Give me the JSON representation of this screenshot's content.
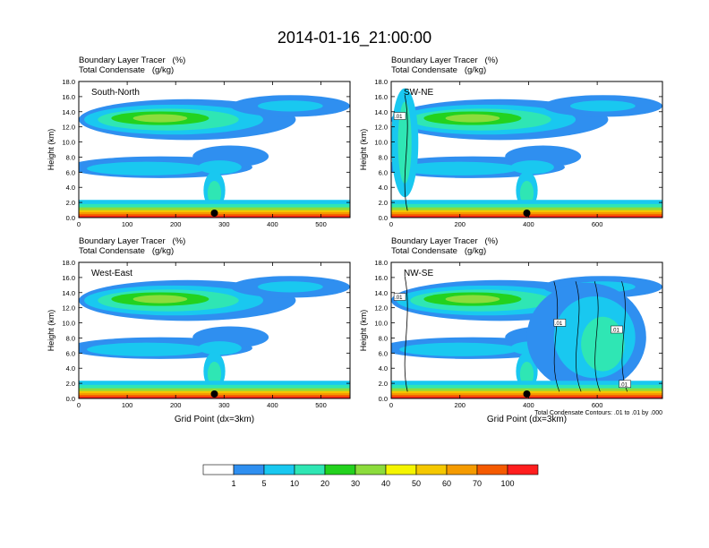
{
  "title": "2014-01-16_21:00:00",
  "field_label_1": "Boundary Layer Tracer   (%)",
  "field_label_2": "Total Condensate   (g/kg)",
  "colors": [
    "#ffffff",
    "#2f8ff0",
    "#19c8f0",
    "#2fe6b4",
    "#23d21e",
    "#8cdc3c",
    "#f5f500",
    "#f5c800",
    "#f59b00",
    "#f55a00",
    "#ff1e1e"
  ],
  "chart_data": [
    {
      "type": "heatmap",
      "label": "South-North",
      "x_ticks": [
        0,
        100,
        200,
        300,
        400,
        500
      ],
      "xlim": [
        0,
        560
      ],
      "ylim": [
        0,
        18
      ],
      "y_ticks": [
        "0.0",
        "2.0",
        "4.0",
        "6.0",
        "8.0",
        "10.0",
        "12.0",
        "14.0",
        "16.0",
        "18.0"
      ],
      "ylabel": "Height (km)",
      "marker_x": 280,
      "contour_labels": []
    },
    {
      "type": "heatmap",
      "label": "SW-NE",
      "x_ticks": [
        0,
        200,
        400,
        600
      ],
      "xlim": [
        0,
        790
      ],
      "ylim": [
        0,
        18
      ],
      "y_ticks": [
        "0.0",
        "2.0",
        "4.0",
        "6.0",
        "8.0",
        "10.0",
        "12.0",
        "14.0",
        "16.0",
        "18.0"
      ],
      "ylabel": "Height (km)",
      "marker_x": 395,
      "contour_labels": [
        ".01"
      ]
    },
    {
      "type": "heatmap",
      "label": "West-East",
      "x_ticks": [
        0,
        100,
        200,
        300,
        400,
        500
      ],
      "xlim": [
        0,
        560
      ],
      "ylim": [
        0,
        18
      ],
      "y_ticks": [
        "0.0",
        "2.0",
        "4.0",
        "6.0",
        "8.0",
        "10.0",
        "12.0",
        "14.0",
        "16.0",
        "18.0"
      ],
      "ylabel": "Height (km)",
      "xlabel": "Grid Point (dx=3km)",
      "marker_x": 280,
      "contour_labels": []
    },
    {
      "type": "heatmap",
      "label": "NW-SE",
      "x_ticks": [
        0,
        200,
        400,
        600
      ],
      "xlim": [
        0,
        790
      ],
      "ylim": [
        0,
        18
      ],
      "y_ticks": [
        "0.0",
        "2.0",
        "4.0",
        "6.0",
        "8.0",
        "10.0",
        "12.0",
        "14.0",
        "16.0",
        "18.0"
      ],
      "ylabel": "Height (km)",
      "xlabel": "Grid Point (dx=3km)",
      "marker_x": 395,
      "contour_labels": [
        ".01",
        ".01",
        ".01",
        ".01"
      ],
      "footer": "Total Condensate Contours: .01 to .01 by .000"
    }
  ],
  "colorbar": {
    "labels": [
      "1",
      "5",
      "10",
      "20",
      "30",
      "40",
      "50",
      "60",
      "70",
      "100"
    ]
  }
}
